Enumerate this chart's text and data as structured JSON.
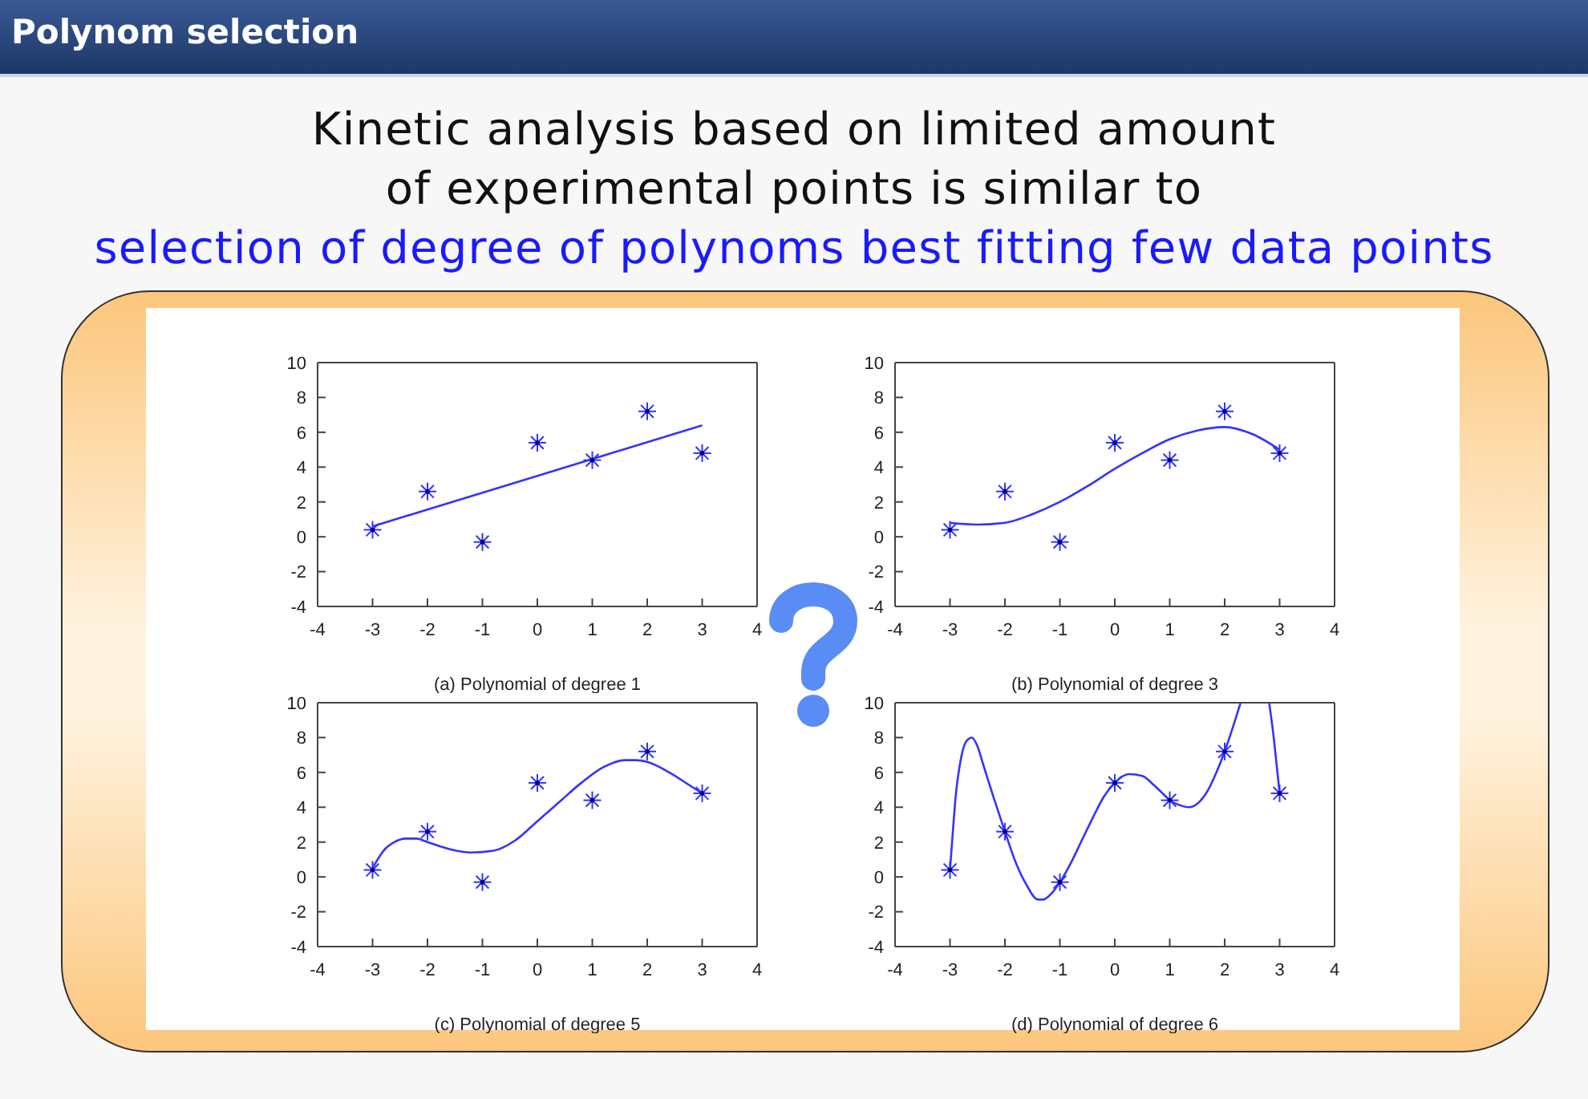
{
  "chart_data": [
    {
      "type": "other",
      "title": "Polynom selection",
      "subtitle": "Kinetic analysis based on limited amount of experimental points is similar to",
      "annotations": [
        "selection of degree of polynoms best fitting few data points"
      ]
    },
    {
      "type": "scatter",
      "xlabel": "(a) Polynomial of degree 1",
      "xlim": [
        -4,
        4
      ],
      "xticks": [
        -4,
        -3,
        -2,
        -1,
        0,
        1,
        2,
        3,
        4
      ],
      "ylim": [
        -4,
        10
      ],
      "yticks": [
        -4,
        -2,
        0,
        2,
        4,
        6,
        8,
        10
      ],
      "series": [
        {
          "type": "scatter",
          "color": "#3333ff",
          "marker": "cross",
          "x": [
            -3,
            -2,
            -1,
            0,
            1,
            2,
            3
          ],
          "values": [
            0.4,
            2.6,
            -0.3,
            5.4,
            4.4,
            7.2,
            4.8
          ]
        },
        {
          "type": "line",
          "color": "#3333ff",
          "x": [
            -3,
            0,
            3
          ],
          "values": [
            0.6,
            3.5,
            6.4
          ]
        }
      ]
    },
    {
      "type": "scatter",
      "xlabel": "(b) Polynomial of degree 3",
      "xlim": [
        -4,
        4
      ],
      "xticks": [
        -4,
        -3,
        -2,
        -1,
        0,
        1,
        2,
        3,
        4
      ],
      "ylim": [
        -4,
        10
      ],
      "yticks": [
        -4,
        -2,
        0,
        2,
        4,
        6,
        8,
        10
      ],
      "series": [
        {
          "type": "scatter",
          "color": "#3333ff",
          "marker": "cross",
          "x": [
            -3,
            -2,
            -1,
            0,
            1,
            2,
            3
          ],
          "values": [
            0.4,
            2.6,
            -0.3,
            5.4,
            4.4,
            7.2,
            4.8
          ]
        },
        {
          "type": "line",
          "color": "#3333ff",
          "x": [
            -3,
            -2.5,
            -2,
            -1.5,
            -1,
            -0.5,
            0,
            0.5,
            1,
            1.5,
            2,
            2.5,
            3
          ],
          "values": [
            0.8,
            0.7,
            0.8,
            1.3,
            2.0,
            2.9,
            3.9,
            4.8,
            5.6,
            6.1,
            6.3,
            5.9,
            5.0
          ]
        }
      ]
    },
    {
      "type": "scatter",
      "xlabel": "(c) Polynomial of degree 5",
      "xlim": [
        -4,
        4
      ],
      "xticks": [
        -4,
        -3,
        -2,
        -1,
        0,
        1,
        2,
        3,
        4
      ],
      "ylim": [
        -4,
        10
      ],
      "yticks": [
        -4,
        -2,
        0,
        2,
        4,
        6,
        8,
        10
      ],
      "series": [
        {
          "type": "scatter",
          "color": "#3333ff",
          "marker": "cross",
          "x": [
            -3,
            -2,
            -1,
            0,
            1,
            2,
            3
          ],
          "values": [
            0.4,
            2.6,
            -0.3,
            5.4,
            4.4,
            7.2,
            4.8
          ]
        },
        {
          "type": "line",
          "color": "#3333ff",
          "x": [
            -3,
            -2.8,
            -2.6,
            -2.4,
            -2.2,
            -2,
            -1.6,
            -1.2,
            -0.8,
            -0.4,
            0,
            0.4,
            0.8,
            1.2,
            1.6,
            1.8,
            2,
            2.4,
            2.8,
            3
          ],
          "values": [
            0.5,
            1.5,
            2.0,
            2.2,
            2.2,
            2.0,
            1.6,
            1.4,
            1.5,
            2.1,
            3.2,
            4.3,
            5.4,
            6.3,
            6.7,
            6.7,
            6.6,
            6.0,
            5.2,
            4.8
          ]
        }
      ]
    },
    {
      "type": "scatter",
      "xlabel": "(d) Polynomial of degree 6",
      "xlim": [
        -4,
        4
      ],
      "xticks": [
        -4,
        -3,
        -2,
        -1,
        0,
        1,
        2,
        3,
        4
      ],
      "ylim": [
        -4,
        10
      ],
      "yticks": [
        -4,
        -2,
        0,
        2,
        4,
        6,
        8,
        10
      ],
      "series": [
        {
          "type": "scatter",
          "color": "#3333ff",
          "marker": "cross",
          "x": [
            -3,
            -2,
            -1,
            0,
            1,
            2,
            3
          ],
          "values": [
            0.4,
            2.6,
            -0.3,
            5.4,
            4.4,
            7.2,
            4.8
          ]
        },
        {
          "type": "line",
          "color": "#3333ff",
          "x": [
            -3,
            -2.95,
            -2.9,
            -2.8,
            -2.7,
            -2.6,
            -2.5,
            -2.4,
            -2.2,
            -2,
            -1.8,
            -1.6,
            -1.4,
            -1.3,
            -1.2,
            -1,
            -0.8,
            -0.6,
            -0.4,
            -0.2,
            0,
            0.25,
            0.5,
            0.7,
            0.9,
            1,
            1.2,
            1.35,
            1.5,
            1.7,
            1.85,
            2,
            2.15,
            2.29,
            2.55,
            2.81,
            2.9,
            2.95,
            3
          ],
          "values": [
            0.4,
            2.5,
            4.5,
            6.8,
            7.8,
            8.0,
            7.5,
            6.5,
            4.5,
            2.6,
            0.8,
            -0.5,
            -1.3,
            -1.3,
            -1.1,
            -0.3,
            0.8,
            2.1,
            3.4,
            4.6,
            5.4,
            5.9,
            5.8,
            5.3,
            4.7,
            4.4,
            4.1,
            4.0,
            4.2,
            5.0,
            6.0,
            7.2,
            8.6,
            10,
            null,
            10,
            7.8,
            6.3,
            4.8
          ]
        }
      ]
    }
  ]
}
